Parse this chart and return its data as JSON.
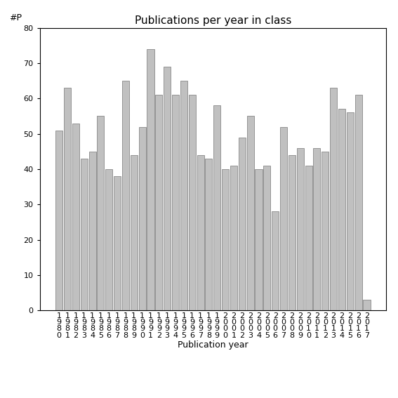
{
  "title": "Publications per year in class",
  "xlabel": "Publication year",
  "ylabel": "#P",
  "years": [
    1980,
    1981,
    1982,
    1983,
    1984,
    1985,
    1986,
    1987,
    1988,
    1989,
    1990,
    1991,
    1992,
    1993,
    1994,
    1995,
    1996,
    1997,
    1998,
    1999,
    2000,
    2001,
    2002,
    2003,
    2004,
    2005,
    2006,
    2007,
    2008,
    2009,
    2010,
    2011,
    2012,
    2013,
    2014,
    2015,
    2016,
    2017
  ],
  "values": [
    51,
    63,
    53,
    43,
    45,
    55,
    40,
    38,
    65,
    44,
    52,
    74,
    61,
    69,
    61,
    65,
    61,
    44,
    43,
    58,
    40,
    41,
    49,
    55,
    40,
    41,
    28,
    52,
    44,
    46,
    41,
    46,
    45,
    63,
    57,
    56,
    61,
    3
  ],
  "bar_color": "#c0c0c0",
  "bar_edgecolor": "#888888",
  "ylim": [
    0,
    80
  ],
  "yticks": [
    0,
    10,
    20,
    30,
    40,
    50,
    60,
    70,
    80
  ],
  "background_color": "#ffffff",
  "title_fontsize": 11,
  "label_fontsize": 9,
  "tick_fontsize": 8
}
